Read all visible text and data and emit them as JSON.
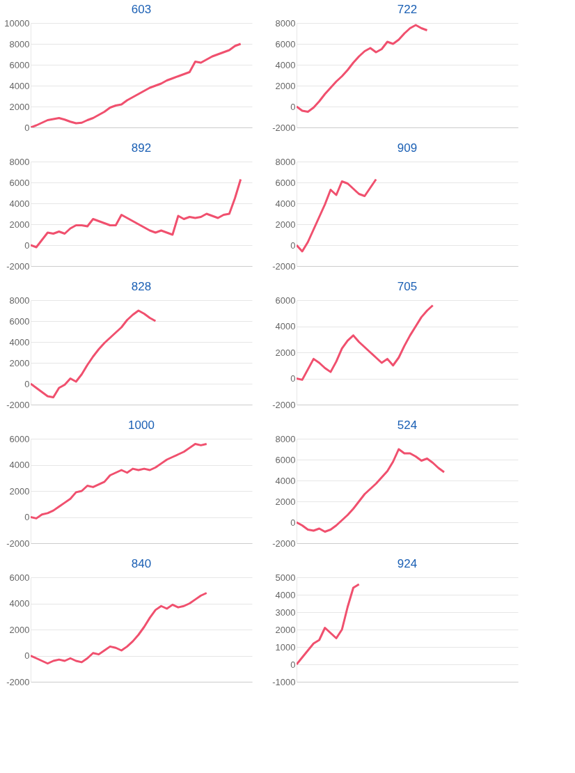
{
  "chart_data": [
    {
      "type": "line",
      "title": "603",
      "categories": [
        null,
        null,
        null,
        null,
        null,
        null,
        null,
        null,
        null,
        null,
        null,
        null,
        null,
        null,
        null,
        null,
        null,
        null,
        null,
        null,
        null,
        null,
        null,
        null,
        null,
        null,
        null,
        null,
        null,
        null,
        null,
        null,
        null,
        null,
        null,
        null,
        null,
        null,
        null,
        null
      ],
      "series": [
        {
          "color": "#f0506e",
          "values": [
            0,
            200,
            450,
            700,
            800,
            900,
            750,
            550,
            400,
            450,
            700,
            900,
            1200,
            1500,
            1900,
            2100,
            2200,
            2600,
            2900,
            3200,
            3500,
            3800,
            4000,
            4200,
            4500,
            4700,
            4900,
            5100,
            5300,
            6300,
            6200,
            6500,
            6800,
            7000,
            7200,
            7400,
            7800,
            8000,
            null,
            null
          ]
        }
      ],
      "ylim": [
        0,
        10000
      ],
      "yticks": [
        0,
        2000,
        4000,
        6000,
        8000,
        10000
      ],
      "grid": "y",
      "tick_labels": "y",
      "legend": false
    },
    {
      "type": "line",
      "title": "722",
      "categories": [
        null,
        null,
        null,
        null,
        null,
        null,
        null,
        null,
        null,
        null,
        null,
        null,
        null,
        null,
        null,
        null,
        null,
        null,
        null,
        null,
        null,
        null,
        null,
        null,
        null,
        null,
        null,
        null,
        null,
        null,
        null,
        null,
        null,
        null,
        null,
        null,
        null,
        null,
        null,
        null
      ],
      "series": [
        {
          "color": "#f0506e",
          "values": [
            0,
            -400,
            -500,
            -100,
            500,
            1200,
            1800,
            2400,
            2900,
            3500,
            4200,
            4800,
            5300,
            5600,
            5200,
            5500,
            6200,
            6000,
            6400,
            7000,
            7500,
            7800,
            7500,
            7300,
            null,
            null,
            null,
            null,
            null,
            null,
            null,
            null,
            null,
            null,
            null,
            null,
            null,
            null,
            null,
            null
          ]
        }
      ],
      "ylim": [
        -2000,
        8000
      ],
      "yticks": [
        -2000,
        0,
        2000,
        4000,
        6000,
        8000
      ],
      "grid": "y",
      "tick_labels": "y",
      "legend": false
    },
    {
      "type": "line",
      "title": "892",
      "categories": [
        null,
        null,
        null,
        null,
        null,
        null,
        null,
        null,
        null,
        null,
        null,
        null,
        null,
        null,
        null,
        null,
        null,
        null,
        null,
        null,
        null,
        null,
        null,
        null,
        null,
        null,
        null,
        null,
        null,
        null,
        null,
        null,
        null,
        null,
        null,
        null,
        null,
        null,
        null,
        null
      ],
      "series": [
        {
          "color": "#f0506e",
          "values": [
            0,
            -200,
            500,
            1200,
            1100,
            1300,
            1100,
            1600,
            1900,
            1900,
            1800,
            2500,
            2300,
            2100,
            1900,
            1900,
            2900,
            2600,
            2300,
            2000,
            1700,
            1400,
            1200,
            1400,
            1200,
            1000,
            2800,
            2500,
            2700,
            2600,
            2700,
            3000,
            2800,
            2600,
            2900,
            3000,
            4500,
            6300,
            null,
            null
          ]
        }
      ],
      "ylim": [
        -2000,
        8000
      ],
      "yticks": [
        -2000,
        0,
        2000,
        4000,
        6000,
        8000
      ],
      "grid": "y",
      "tick_labels": "y",
      "legend": false
    },
    {
      "type": "line",
      "title": "909",
      "categories": [
        null,
        null,
        null,
        null,
        null,
        null,
        null,
        null,
        null,
        null,
        null,
        null,
        null,
        null,
        null,
        null,
        null,
        null,
        null,
        null,
        null,
        null,
        null,
        null,
        null,
        null,
        null,
        null,
        null,
        null,
        null,
        null,
        null,
        null,
        null,
        null,
        null,
        null,
        null,
        null
      ],
      "series": [
        {
          "color": "#f0506e",
          "values": [
            0,
            -600,
            300,
            1500,
            2700,
            3900,
            5300,
            4800,
            6100,
            5900,
            5400,
            4900,
            4700,
            5500,
            6300,
            null,
            null,
            null,
            null,
            null,
            null,
            null,
            null,
            null,
            null,
            null,
            null,
            null,
            null,
            null,
            null,
            null,
            null,
            null,
            null,
            null,
            null,
            null,
            null,
            null
          ]
        }
      ],
      "ylim": [
        -2000,
        8000
      ],
      "yticks": [
        -2000,
        0,
        2000,
        4000,
        6000,
        8000
      ],
      "grid": "y",
      "tick_labels": "y",
      "legend": false
    },
    {
      "type": "line",
      "title": "828",
      "categories": [
        null,
        null,
        null,
        null,
        null,
        null,
        null,
        null,
        null,
        null,
        null,
        null,
        null,
        null,
        null,
        null,
        null,
        null,
        null,
        null,
        null,
        null,
        null,
        null,
        null,
        null,
        null,
        null,
        null,
        null,
        null,
        null,
        null,
        null,
        null,
        null,
        null,
        null,
        null,
        null
      ],
      "series": [
        {
          "color": "#f0506e",
          "values": [
            0,
            -400,
            -800,
            -1200,
            -1300,
            -400,
            -100,
            500,
            200,
            900,
            1800,
            2600,
            3300,
            3900,
            4400,
            4900,
            5400,
            6100,
            6600,
            7000,
            6700,
            6300,
            6000,
            null,
            null,
            null,
            null,
            null,
            null,
            null,
            null,
            null,
            null,
            null,
            null,
            null,
            null,
            null,
            null,
            null
          ]
        }
      ],
      "ylim": [
        -2000,
        8000
      ],
      "yticks": [
        -2000,
        0,
        2000,
        4000,
        6000,
        8000
      ],
      "grid": "y",
      "tick_labels": "y",
      "legend": false
    },
    {
      "type": "line",
      "title": "705",
      "categories": [
        null,
        null,
        null,
        null,
        null,
        null,
        null,
        null,
        null,
        null,
        null,
        null,
        null,
        null,
        null,
        null,
        null,
        null,
        null,
        null,
        null,
        null,
        null,
        null,
        null,
        null,
        null,
        null,
        null,
        null,
        null,
        null,
        null,
        null,
        null,
        null,
        null,
        null,
        null,
        null
      ],
      "series": [
        {
          "color": "#f0506e",
          "values": [
            0,
            -100,
            700,
            1500,
            1200,
            800,
            500,
            1300,
            2300,
            2900,
            3300,
            2800,
            2400,
            2000,
            1600,
            1200,
            1500,
            1000,
            1600,
            2500,
            3300,
            4000,
            4700,
            5200,
            5600,
            null,
            null,
            null,
            null,
            null,
            null,
            null,
            null,
            null,
            null,
            null,
            null,
            null,
            null,
            null
          ]
        }
      ],
      "ylim": [
        -2000,
        6000
      ],
      "yticks": [
        -2000,
        0,
        2000,
        4000,
        6000
      ],
      "grid": "y",
      "tick_labels": "y",
      "legend": false
    },
    {
      "type": "line",
      "title": "1000",
      "categories": [
        null,
        null,
        null,
        null,
        null,
        null,
        null,
        null,
        null,
        null,
        null,
        null,
        null,
        null,
        null,
        null,
        null,
        null,
        null,
        null,
        null,
        null,
        null,
        null,
        null,
        null,
        null,
        null,
        null,
        null,
        null,
        null,
        null,
        null,
        null,
        null,
        null,
        null,
        null,
        null
      ],
      "series": [
        {
          "color": "#f0506e",
          "values": [
            0,
            -100,
            200,
            300,
            500,
            800,
            1100,
            1400,
            1900,
            2000,
            2400,
            2300,
            2500,
            2700,
            3200,
            3400,
            3600,
            3400,
            3700,
            3600,
            3700,
            3600,
            3800,
            4100,
            4400,
            4600,
            4800,
            5000,
            5300,
            5600,
            5500,
            5600,
            null,
            null,
            null,
            null,
            null,
            null,
            null,
            null
          ]
        }
      ],
      "ylim": [
        -2000,
        6000
      ],
      "yticks": [
        -2000,
        0,
        2000,
        4000,
        6000
      ],
      "grid": "y",
      "tick_labels": "y",
      "legend": false
    },
    {
      "type": "line",
      "title": "524",
      "categories": [
        null,
        null,
        null,
        null,
        null,
        null,
        null,
        null,
        null,
        null,
        null,
        null,
        null,
        null,
        null,
        null,
        null,
        null,
        null,
        null,
        null,
        null,
        null,
        null,
        null,
        null,
        null,
        null,
        null,
        null,
        null,
        null,
        null,
        null,
        null,
        null,
        null,
        null,
        null,
        null
      ],
      "series": [
        {
          "color": "#f0506e",
          "values": [
            0,
            -300,
            -700,
            -800,
            -600,
            -900,
            -700,
            -300,
            200,
            700,
            1300,
            2000,
            2700,
            3200,
            3700,
            4300,
            4900,
            5800,
            7000,
            6600,
            6600,
            6300,
            5900,
            6100,
            5700,
            5200,
            4800,
            null,
            null,
            null,
            null,
            null,
            null,
            null,
            null,
            null,
            null,
            null,
            null,
            null
          ]
        }
      ],
      "ylim": [
        -2000,
        8000
      ],
      "yticks": [
        -2000,
        0,
        2000,
        4000,
        6000,
        8000
      ],
      "grid": "y",
      "tick_labels": "y",
      "legend": false
    },
    {
      "type": "line",
      "title": "840",
      "categories": [
        null,
        null,
        null,
        null,
        null,
        null,
        null,
        null,
        null,
        null,
        null,
        null,
        null,
        null,
        null,
        null,
        null,
        null,
        null,
        null,
        null,
        null,
        null,
        null,
        null,
        null,
        null,
        null,
        null,
        null,
        null,
        null,
        null,
        null,
        null,
        null,
        null,
        null,
        null,
        null
      ],
      "series": [
        {
          "color": "#f0506e",
          "values": [
            0,
            -200,
            -400,
            -600,
            -400,
            -300,
            -400,
            -200,
            -400,
            -500,
            -200,
            200,
            100,
            400,
            700,
            600,
            400,
            700,
            1100,
            1600,
            2200,
            2900,
            3500,
            3800,
            3600,
            3900,
            3700,
            3800,
            4000,
            4300,
            4600,
            4800,
            null,
            null,
            null,
            null,
            null,
            null,
            null,
            null
          ]
        }
      ],
      "ylim": [
        -2000,
        6000
      ],
      "yticks": [
        -2000,
        0,
        2000,
        4000,
        6000
      ],
      "grid": "y",
      "tick_labels": "y",
      "legend": false
    },
    {
      "type": "line",
      "title": "924",
      "categories": [
        null,
        null,
        null,
        null,
        null,
        null,
        null,
        null,
        null,
        null,
        null,
        null,
        null,
        null,
        null,
        null,
        null,
        null,
        null,
        null,
        null,
        null,
        null,
        null,
        null,
        null,
        null,
        null,
        null,
        null,
        null,
        null,
        null,
        null,
        null,
        null,
        null,
        null,
        null,
        null
      ],
      "series": [
        {
          "color": "#f0506e",
          "values": [
            0,
            400,
            800,
            1200,
            1400,
            2100,
            1800,
            1500,
            2000,
            3300,
            4400,
            4600,
            null,
            null,
            null,
            null,
            null,
            null,
            null,
            null,
            null,
            null,
            null,
            null,
            null,
            null,
            null,
            null,
            null,
            null,
            null,
            null,
            null,
            null,
            null,
            null,
            null,
            null,
            null,
            null
          ]
        }
      ],
      "ylim": [
        -1000,
        5000
      ],
      "yticks": [
        -1000,
        0,
        1000,
        2000,
        3000,
        4000,
        5000
      ],
      "grid": "y",
      "tick_labels": "y",
      "legend": false
    }
  ]
}
